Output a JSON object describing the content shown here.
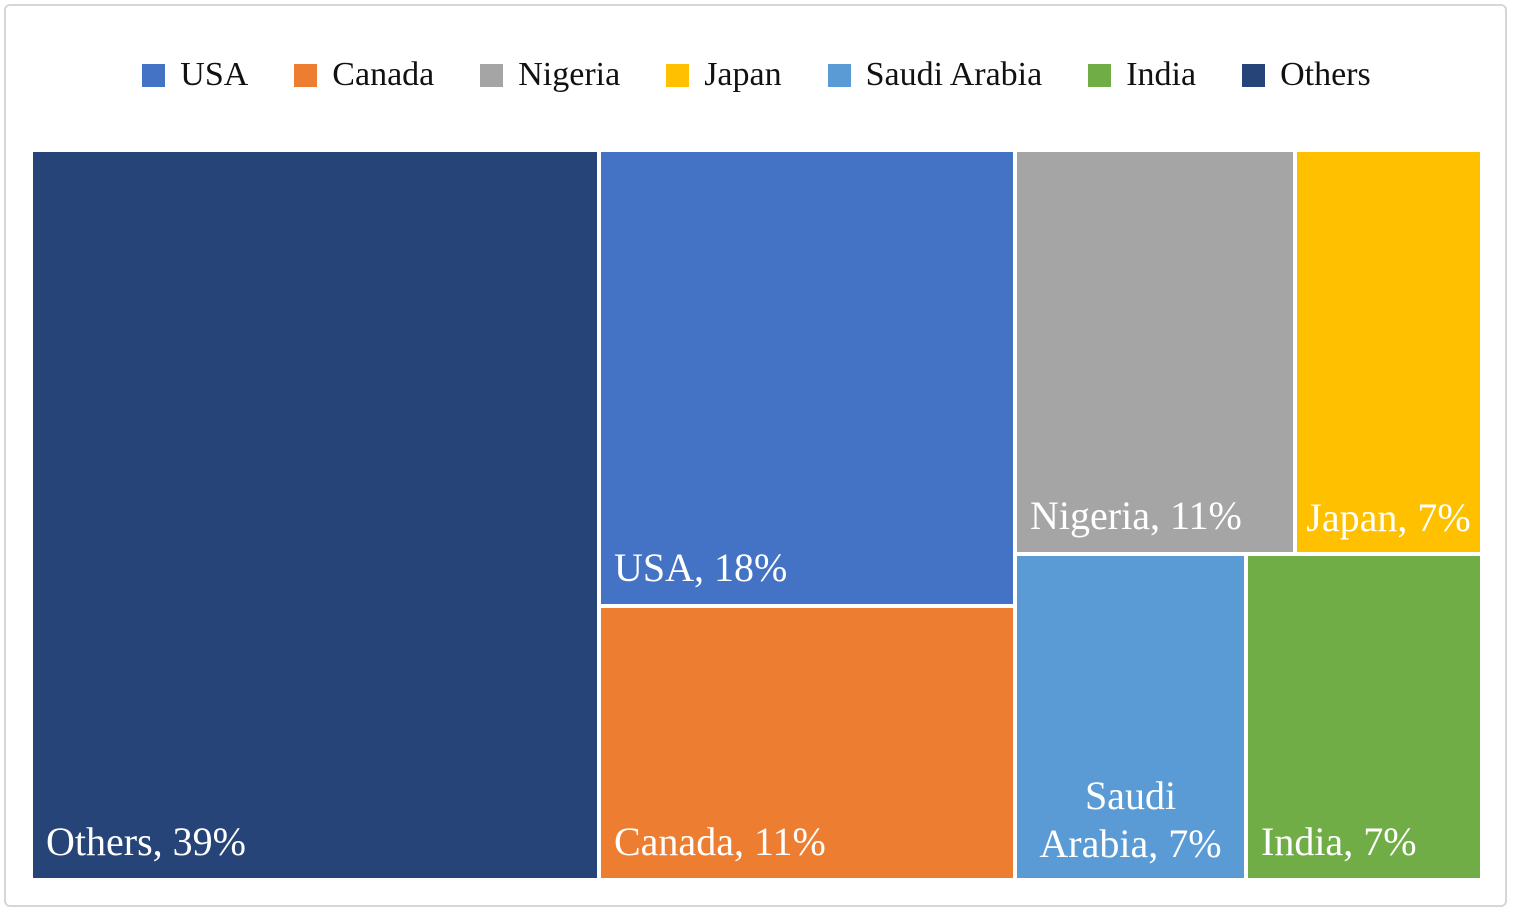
{
  "chart_data": {
    "type": "treemap",
    "title": "",
    "legend_position": "top",
    "unit": "%",
    "categories": [
      "USA",
      "Canada",
      "Nigeria",
      "Japan",
      "Saudi Arabia",
      "India",
      "Others"
    ],
    "values": [
      18,
      11,
      11,
      7,
      7,
      7,
      39
    ],
    "series": [
      {
        "name": "USA",
        "value": 18,
        "label": "USA, 18%",
        "color": "#4472C4"
      },
      {
        "name": "Canada",
        "value": 11,
        "label": "Canada, 11%",
        "color": "#ED7D31"
      },
      {
        "name": "Nigeria",
        "value": 11,
        "label": "Nigeria, 11%",
        "color": "#A5A5A5"
      },
      {
        "name": "Japan",
        "value": 7,
        "label": "Japan, 7%",
        "color": "#FFC000"
      },
      {
        "name": "Saudi Arabia",
        "value": 7,
        "label": "Saudi Arabia, 7%",
        "color": "#5B9BD5"
      },
      {
        "name": "India",
        "value": 7,
        "label": "India, 7%",
        "color": "#70AD47"
      },
      {
        "name": "Others",
        "value": 39,
        "label": "Others, 39%",
        "color": "#264478"
      }
    ],
    "label_text_color": "#FFFFFF",
    "frame_border_color": "#D6D6D6",
    "background_color": "#FFFFFF"
  }
}
